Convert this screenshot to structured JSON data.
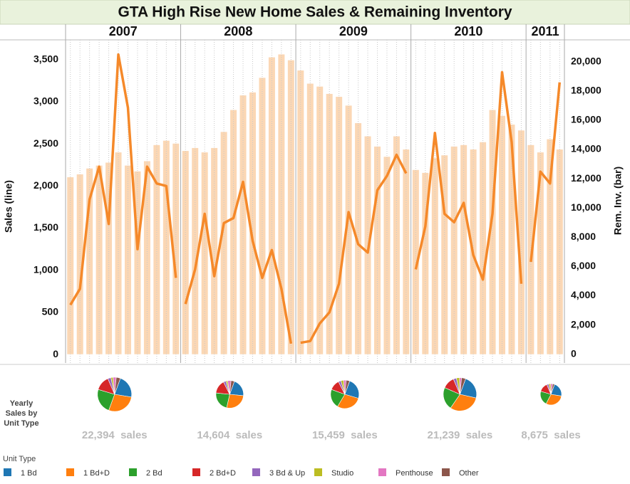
{
  "chart_data": {
    "type": "bar-line",
    "title": "GTA High Rise New Home Sales & Remaining Inventory",
    "ylabel": "Sales (line)",
    "y2label": "Rem. Inv. (bar)",
    "ylim": [
      -100,
      3700
    ],
    "yticks": [
      0,
      500,
      {
        "value": 1000,
        "label": "1,000"
      },
      {
        "value": 1500,
        "label": "1,500"
      },
      {
        "value": 2000,
        "label": "2,000"
      },
      {
        "value": 2500,
        "label": "2,500"
      },
      {
        "value": 3000,
        "label": "3,000"
      },
      {
        "value": 3500,
        "label": "3,500"
      }
    ],
    "y2lim": [
      -600,
      21300
    ],
    "y2ticks": [
      0,
      {
        "value": 2000,
        "label": "2,000"
      },
      {
        "value": 4000,
        "label": "4,000"
      },
      {
        "value": 6000,
        "label": "6,000"
      },
      {
        "value": 8000,
        "label": "8,000"
      },
      {
        "value": 10000,
        "label": "10,000"
      },
      {
        "value": 12000,
        "label": "12,000"
      },
      {
        "value": 14000,
        "label": "14,000"
      },
      {
        "value": 16000,
        "label": "16,000"
      },
      {
        "value": 18000,
        "label": "18,000"
      },
      {
        "value": 20000,
        "label": "20,000"
      }
    ],
    "line_color": "#f5892a",
    "bar_color": "#fbd7b4",
    "years": [
      {
        "label": "2007",
        "sales": [
          590,
          780,
          1840,
          2230,
          1550,
          3560,
          2930,
          1250,
          2230,
          2030,
          2000,
          910
        ],
        "inventory": [
          12100,
          12300,
          12700,
          12900,
          13100,
          13800,
          12900,
          12500,
          13200,
          14300,
          14600,
          14400
        ],
        "total": 22394,
        "total_label": "22,394  sales",
        "shares": [
          22,
          28,
          24,
          14,
          3,
          2,
          3,
          4
        ]
      },
      {
        "label": "2008",
        "sales": [
          600,
          1010,
          1670,
          930,
          1560,
          1620,
          2050,
          1350,
          910,
          1240,
          780,
          130
        ],
        "inventory": [
          13900,
          14100,
          13800,
          14100,
          15200,
          16700,
          17700,
          17900,
          18900,
          20300,
          20500,
          20100
        ],
        "total": 14604,
        "total_label": "14,604  sales",
        "shares": [
          21,
          27,
          23,
          16,
          3,
          2,
          4,
          4
        ]
      },
      {
        "label": "2009",
        "sales": [
          140,
          160,
          370,
          500,
          840,
          1690,
          1310,
          1210,
          1950,
          2120,
          2370,
          2150
        ],
        "inventory": [
          19400,
          18500,
          18300,
          17800,
          17600,
          17000,
          15800,
          14900,
          14200,
          13500,
          14900,
          14000
        ],
        "total": 15459,
        "total_label": "15,459  sales",
        "shares": [
          24,
          29,
          22,
          12,
          3,
          3,
          3,
          4
        ]
      },
      {
        "label": "2010",
        "sales": [
          1010,
          1520,
          2630,
          1670,
          1570,
          1800,
          1180,
          890,
          1670,
          3350,
          2520,
          840
        ],
        "inventory": [
          12600,
          12400,
          13400,
          13600,
          14200,
          14300,
          14000,
          14500,
          16700,
          16300,
          15700,
          15300
        ],
        "total": 21239,
        "total_label": "21,239  sales",
        "shares": [
          23,
          31,
          22,
          12,
          3,
          3,
          2,
          4
        ]
      },
      {
        "label": "2011",
        "sales": [
          1100,
          2170,
          2030,
          3230
        ],
        "inventory": [
          14300,
          13800,
          14700,
          14000
        ],
        "total": 8675,
        "total_label": "8,675  sales",
        "shares": [
          22,
          30,
          22,
          14,
          3,
          3,
          3,
          3
        ]
      }
    ],
    "pie_caption": [
      "Yearly",
      "Sales by",
      "Unit Type"
    ],
    "legend_title": "Unit Type",
    "unit_types": [
      {
        "name": "1 Bd",
        "color": "#1f77b4"
      },
      {
        "name": "1 Bd+D",
        "color": "#ff7f0e"
      },
      {
        "name": "2 Bd",
        "color": "#2ca02c"
      },
      {
        "name": "2 Bd+D",
        "color": "#d62728"
      },
      {
        "name": "3 Bd & Up",
        "color": "#9467bd"
      },
      {
        "name": "Studio",
        "color": "#bcbd22"
      },
      {
        "name": "Penthouse",
        "color": "#e377c2"
      },
      {
        "name": "Other",
        "color": "#8c564b"
      }
    ]
  }
}
